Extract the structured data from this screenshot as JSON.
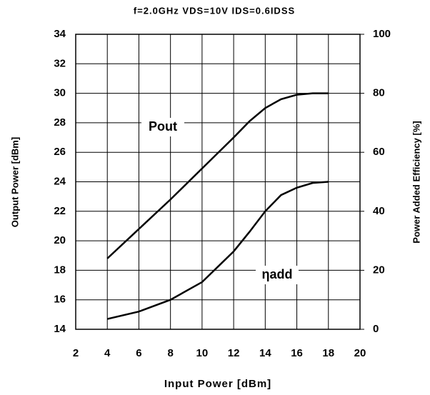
{
  "chart_data": {
    "type": "line",
    "title": "f=2.0GHz  VDS=10V  IDS=0.6IDSS",
    "x_label": "Input Power [dBm]",
    "y_label": "Output Power [dBm]",
    "y2_label": "Power Added Efficiency [%]",
    "xlim": [
      2,
      20
    ],
    "xticks": [
      2,
      4,
      6,
      8,
      10,
      12,
      14,
      16,
      18,
      20
    ],
    "ylim": [
      14,
      34
    ],
    "yticks": [
      14,
      16,
      18,
      20,
      22,
      24,
      26,
      28,
      30,
      32,
      34
    ],
    "y2lim": [
      0,
      100
    ],
    "y2ticks": [
      0,
      20,
      40,
      60,
      80,
      100
    ],
    "grid": true,
    "series": [
      {
        "name": "Pout",
        "color": "#000000",
        "x": [
          4,
          6,
          8,
          10,
          12,
          13,
          14,
          15,
          16,
          17,
          18
        ],
        "values": [
          18.8,
          20.8,
          22.8,
          24.9,
          27.0,
          28.1,
          29.0,
          29.6,
          29.9,
          30.0,
          30.0
        ]
      },
      {
        "name": "ηadd",
        "color": "#000000",
        "axis": "y2",
        "x": [
          4,
          6,
          8,
          10,
          12,
          13,
          14,
          15,
          16,
          17,
          18
        ],
        "values": [
          3.5,
          6,
          10,
          16,
          26.4,
          33,
          40,
          45.5,
          48,
          49.6,
          50
        ]
      }
    ]
  }
}
